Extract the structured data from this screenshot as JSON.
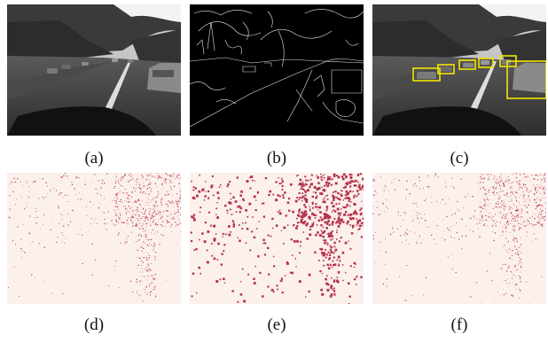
{
  "captions": {
    "a": "(a)",
    "b": "(b)",
    "c": "(c)",
    "d": "(d)",
    "e": "(e)",
    "f": "(f)"
  },
  "colors": {
    "detection_box": "#f2e600",
    "heatmap_background": "#fbf0ec",
    "heatmap_point": "#b5304a",
    "edge_background": "#000000",
    "edge_line": "#e8e8e8"
  }
}
